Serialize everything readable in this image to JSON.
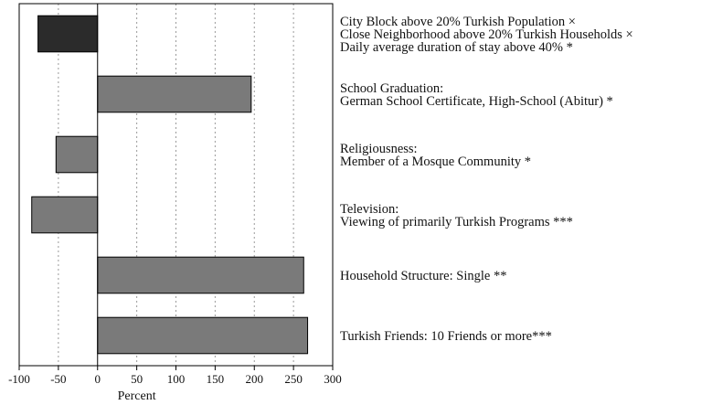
{
  "chart_data": {
    "type": "bar",
    "orientation": "horizontal",
    "title": "",
    "xlabel": "Percent",
    "ylabel": "",
    "xlim": [
      -100,
      300
    ],
    "xticks": [
      -100,
      -50,
      0,
      50,
      100,
      150,
      200,
      250,
      300
    ],
    "grid": "vertical dotted",
    "legend": "none",
    "categories": [
      {
        "label_lines": [
          "City Block above 20% Turkish Population ×",
          "Close Neighborhood above 20% Turkish Households ×",
          "Daily average duration of stay above 40% *"
        ],
        "value": -76,
        "color": "#2b2b2b"
      },
      {
        "label_lines": [
          "School Graduation:",
          "German School Certificate, High-School (Abitur) *"
        ],
        "value": 196,
        "color": "#7a7a7a"
      },
      {
        "label_lines": [
          "Religiousness:",
          "Member of a Mosque Community *"
        ],
        "value": -53,
        "color": "#7a7a7a"
      },
      {
        "label_lines": [
          "Television:",
          "Viewing of primarily Turkish Programs ***"
        ],
        "value": -84,
        "color": "#7a7a7a"
      },
      {
        "label_lines": [
          "Household Structure: Single **"
        ],
        "value": 263,
        "color": "#7a7a7a"
      },
      {
        "label_lines": [
          "Turkish Friends: 10 Friends or more***"
        ],
        "value": 268,
        "color": "#7a7a7a"
      }
    ]
  }
}
